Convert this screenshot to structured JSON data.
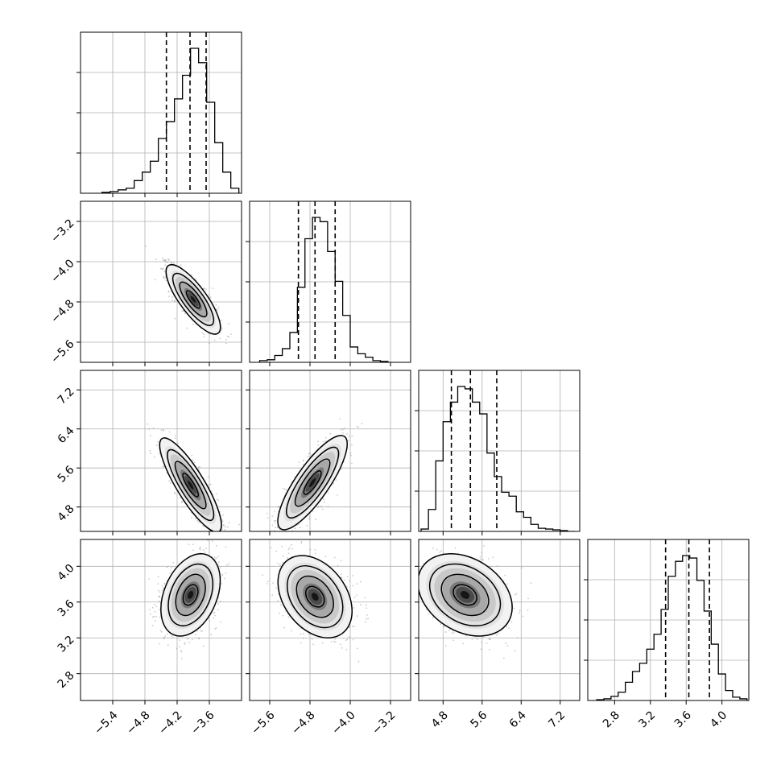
{
  "chart_data": {
    "type": "corner",
    "grid": true,
    "parameters": [
      {
        "index": 0,
        "range": [
          -6.0,
          -3.0
        ],
        "ticks": [
          -5.4,
          -4.8,
          -4.2,
          -3.6
        ],
        "tick_labels": [
          "−5.4",
          "−4.8",
          "−4.2",
          "−3.6"
        ],
        "quantiles": [
          -4.4,
          -3.96,
          -3.66
        ],
        "hist_bins": [
          -5.6,
          -5.45,
          -5.3,
          -5.15,
          -5.0,
          -4.85,
          -4.7,
          -4.55,
          -4.4,
          -4.25,
          -4.1,
          -3.95,
          -3.8,
          -3.65,
          -3.5,
          -3.35,
          -3.2
        ],
        "hist_counts": [
          1,
          2,
          4,
          6,
          15,
          25,
          38,
          65,
          85,
          112,
          140,
          172,
          155,
          108,
          60,
          25,
          6
        ]
      },
      {
        "index": 1,
        "range": [
          -6.0,
          -2.8
        ],
        "ticks": [
          -5.6,
          -4.8,
          -4.0,
          -3.2
        ],
        "tick_labels": [
          "−5.6",
          "−4.8",
          "−4.0",
          "−3.2"
        ],
        "quantiles": [
          -5.03,
          -4.7,
          -4.3
        ],
        "hist_bins": [
          -5.8,
          -5.65,
          -5.5,
          -5.35,
          -5.2,
          -5.05,
          -4.9,
          -4.75,
          -4.6,
          -4.45,
          -4.3,
          -4.15,
          -4.0,
          -3.85,
          -3.7,
          -3.55,
          -3.4
        ],
        "hist_counts": [
          2,
          3,
          8,
          16,
          35,
          88,
          145,
          170,
          165,
          130,
          95,
          55,
          18,
          10,
          6,
          2,
          1
        ]
      },
      {
        "index": 2,
        "range": [
          4.3,
          7.6
        ],
        "ticks": [
          4.8,
          5.6,
          6.4,
          7.2
        ],
        "tick_labels": [
          "4.8",
          "5.6",
          "6.4",
          "7.2"
        ],
        "quantiles": [
          4.97,
          5.36,
          5.9
        ],
        "hist_bins": [
          4.35,
          4.5,
          4.65,
          4.8,
          4.95,
          5.1,
          5.25,
          5.4,
          5.55,
          5.7,
          5.85,
          6.0,
          6.15,
          6.3,
          6.45,
          6.6,
          6.75,
          6.9,
          7.05,
          7.2,
          7.35
        ],
        "hist_counts": [
          3,
          28,
          90,
          140,
          165,
          185,
          182,
          165,
          150,
          100,
          70,
          50,
          45,
          25,
          18,
          9,
          4,
          3,
          2,
          1,
          0
        ]
      },
      {
        "index": 3,
        "range": [
          2.5,
          4.3
        ],
        "ticks": [
          2.8,
          3.2,
          3.6,
          4.0
        ],
        "tick_labels": [
          "2.8",
          "3.2",
          "3.6",
          "4.0"
        ],
        "quantiles": [
          3.37,
          3.63,
          3.86
        ],
        "hist_bins": [
          2.6,
          2.68,
          2.76,
          2.84,
          2.92,
          3.0,
          3.08,
          3.16,
          3.24,
          3.32,
          3.4,
          3.48,
          3.56,
          3.64,
          3.72,
          3.8,
          3.88,
          3.96,
          4.04,
          4.12,
          4.2,
          4.28
        ],
        "hist_counts": [
          1,
          2,
          5,
          10,
          22,
          35,
          45,
          62,
          80,
          110,
          150,
          168,
          175,
          172,
          145,
          108,
          68,
          32,
          12,
          4,
          2,
          0
        ]
      }
    ],
    "pairs": [
      {
        "x": 0,
        "y": 1,
        "center": [
          -3.9,
          -4.75
        ],
        "sigma": [
          0.22,
          0.3
        ],
        "rho": -0.8
      },
      {
        "x": 0,
        "y": 2,
        "center": [
          -3.95,
          5.25
        ],
        "sigma": [
          0.25,
          0.42
        ],
        "rho": -0.85
      },
      {
        "x": 1,
        "y": 2,
        "center": [
          -4.75,
          5.3
        ],
        "sigma": [
          0.3,
          0.42
        ],
        "rho": 0.82
      },
      {
        "x": 0,
        "y": 3,
        "center": [
          -3.95,
          3.68
        ],
        "sigma": [
          0.24,
          0.2
        ],
        "rho": 0.35
      },
      {
        "x": 1,
        "y": 3,
        "center": [
          -4.7,
          3.66
        ],
        "sigma": [
          0.32,
          0.2
        ],
        "rho": -0.35
      },
      {
        "x": 2,
        "y": 3,
        "center": [
          5.25,
          3.68
        ],
        "sigma": [
          0.42,
          0.2
        ],
        "rho": -0.3
      }
    ],
    "contour_levels_sigma": [
      0.5,
      1.0,
      1.5,
      2.0
    ]
  }
}
